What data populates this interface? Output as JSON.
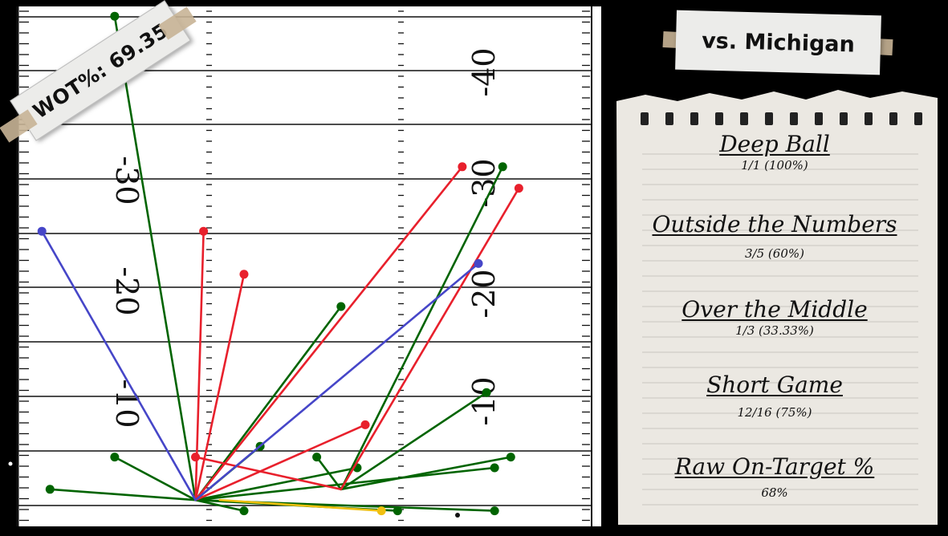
{
  "wot_label": "WOT%: 69.35",
  "title": "vs. Michigan",
  "stats": [
    {
      "heading": "Deep Ball",
      "value": "1/1 (100%)"
    },
    {
      "heading": "Outside the Numbers",
      "value": "3/5 (60%)"
    },
    {
      "heading": "Over the Middle",
      "value": "1/3 (33.33%)"
    },
    {
      "heading": "Short Game",
      "value": "12/16 (75%)"
    },
    {
      "heading": "Raw On-Target %",
      "value": "68%"
    }
  ],
  "field": {
    "left_yard_numbers": [
      "-30",
      "-20",
      "-10"
    ],
    "right_yard_numbers": [
      "-40",
      "-30",
      "-20",
      "-10"
    ]
  },
  "colors": {
    "green": "#006400",
    "red": "#e8202c",
    "blue": "#4646c8",
    "yellow": "#f0c010",
    "paper": "#ebe8e2"
  },
  "chart_data": {
    "type": "scatter",
    "description_units": "field units: x 0-100 across image width of field, y yards downfield (0 at bottom)",
    "passes": [
      {
        "color": "green",
        "from": [
          22,
          2
        ],
        "to": [
          12,
          47
        ]
      },
      {
        "color": "green",
        "from": [
          22,
          2
        ],
        "to": [
          4,
          3
        ]
      },
      {
        "color": "green",
        "from": [
          22,
          2
        ],
        "to": [
          12,
          6
        ]
      },
      {
        "color": "green",
        "from": [
          22,
          2
        ],
        "to": [
          40,
          20
        ]
      },
      {
        "color": "green",
        "from": [
          22,
          2
        ],
        "to": [
          30,
          7
        ]
      },
      {
        "color": "green",
        "from": [
          22,
          2
        ],
        "to": [
          42,
          5
        ]
      },
      {
        "color": "green",
        "from": [
          22,
          2
        ],
        "to": [
          59,
          5
        ]
      },
      {
        "color": "green",
        "from": [
          22,
          2
        ],
        "to": [
          47,
          1
        ]
      },
      {
        "color": "green",
        "from": [
          22,
          2
        ],
        "to": [
          28,
          1
        ]
      },
      {
        "color": "green",
        "from": [
          22,
          2
        ],
        "to": [
          59,
          1
        ]
      },
      {
        "color": "green",
        "from": [
          40,
          3
        ],
        "to": [
          60,
          33
        ]
      },
      {
        "color": "green",
        "from": [
          40,
          3
        ],
        "to": [
          58,
          12
        ]
      },
      {
        "color": "green",
        "from": [
          40,
          3
        ],
        "to": [
          37,
          6
        ]
      },
      {
        "color": "green",
        "from": [
          40,
          3
        ],
        "to": [
          61,
          6
        ]
      },
      {
        "color": "red",
        "from": [
          22,
          2
        ],
        "to": [
          23,
          27
        ]
      },
      {
        "color": "red",
        "from": [
          22,
          2
        ],
        "to": [
          28,
          23
        ]
      },
      {
        "color": "red",
        "from": [
          22,
          2
        ],
        "to": [
          55,
          33
        ]
      },
      {
        "color": "red",
        "from": [
          22,
          2
        ],
        "to": [
          43,
          9
        ]
      },
      {
        "color": "red",
        "from": [
          40,
          3
        ],
        "to": [
          62,
          31
        ]
      },
      {
        "color": "red",
        "from": [
          40,
          3
        ],
        "to": [
          22,
          6
        ]
      },
      {
        "color": "blue",
        "from": [
          22,
          2
        ],
        "to": [
          57,
          24
        ]
      },
      {
        "color": "blue",
        "from": [
          22,
          2
        ],
        "to": [
          3,
          27
        ]
      },
      {
        "color": "yellow",
        "from": [
          25,
          2
        ],
        "to": [
          45,
          1
        ]
      }
    ]
  }
}
